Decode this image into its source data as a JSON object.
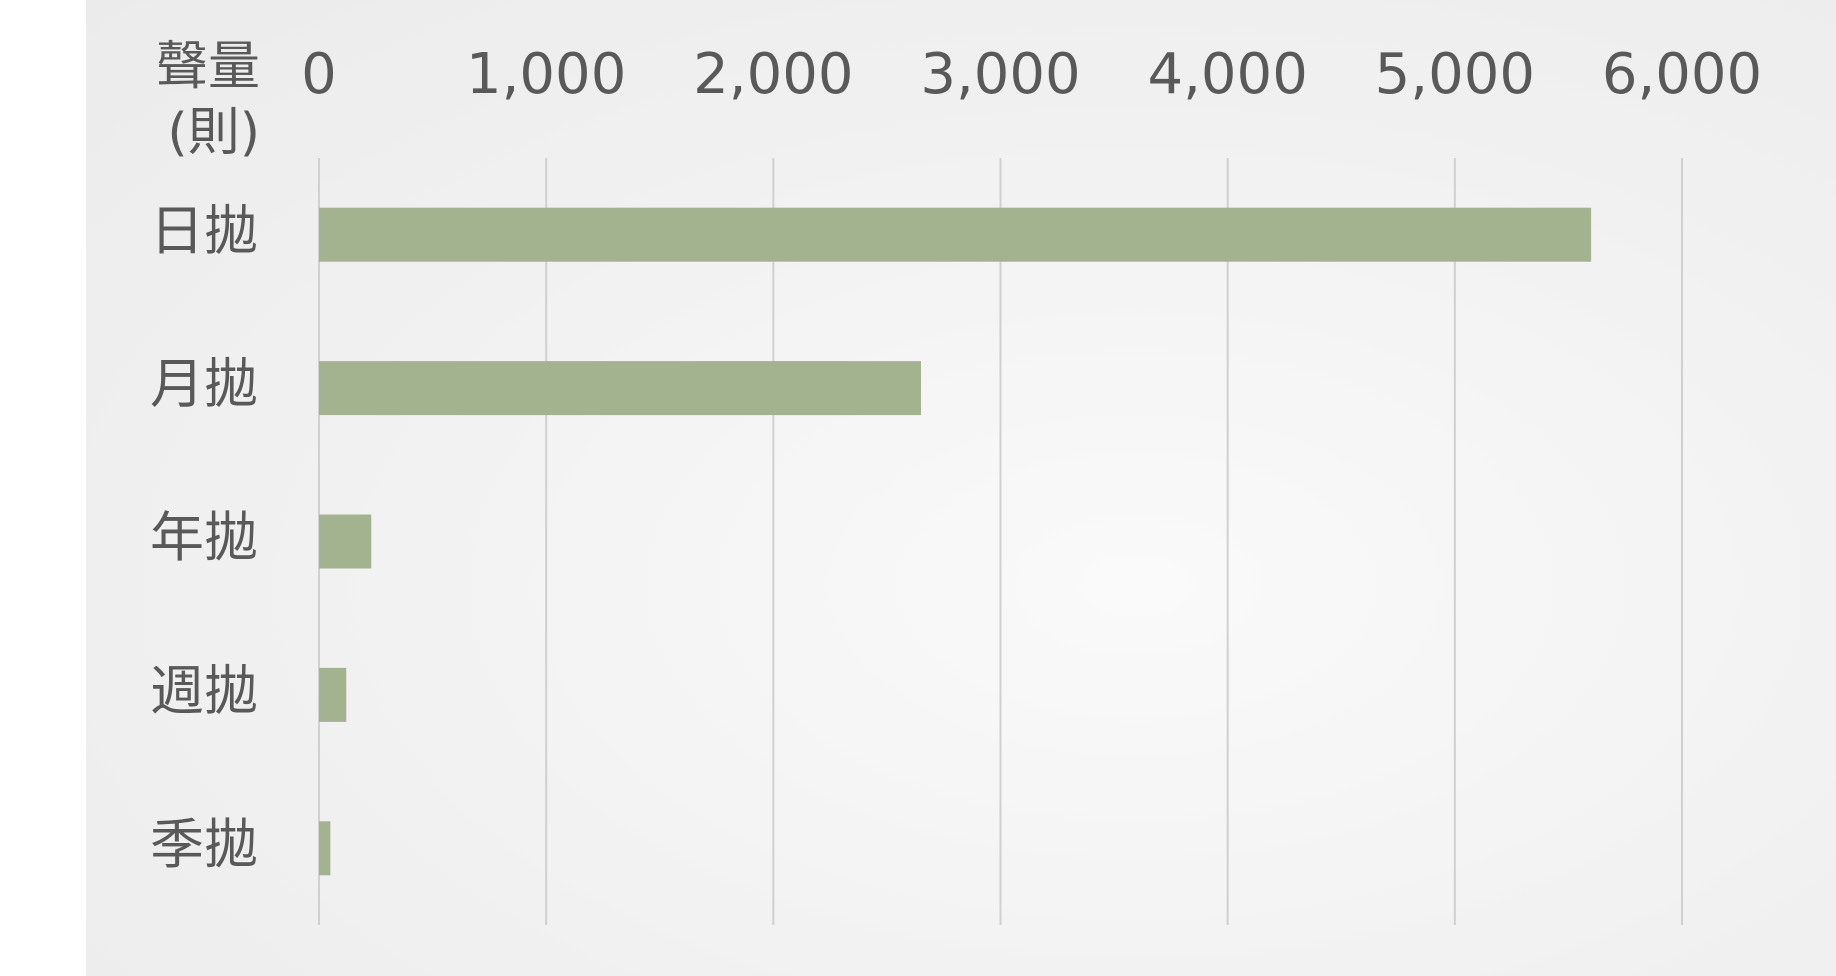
{
  "chart_data": {
    "type": "bar",
    "orientation": "horizontal",
    "x_label": "聲量\n(則)",
    "categories": [
      "日拋",
      "月拋",
      "年拋",
      "週拋",
      "季拋"
    ],
    "values": [
      5600,
      2650,
      230,
      120,
      50
    ],
    "color": "#a3b38f",
    "xlim": [
      0,
      6000
    ],
    "xticks": [
      0,
      {
        "value": 1000,
        "label": "1,000"
      },
      {
        "value": 2000,
        "label": "2,000"
      },
      {
        "value": 3000,
        "label": "3,000"
      },
      {
        "value": 4000,
        "label": "4,000"
      },
      {
        "value": 5000,
        "label": "5,000"
      },
      {
        "value": 6000,
        "label": "6,000"
      }
    ],
    "grid": true
  }
}
